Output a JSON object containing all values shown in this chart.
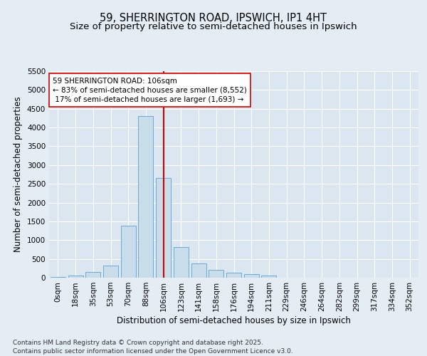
{
  "title_line1": "59, SHERRINGTON ROAD, IPSWICH, IP1 4HT",
  "title_line2": "Size of property relative to semi-detached houses in Ipswich",
  "xlabel": "Distribution of semi-detached houses by size in Ipswich",
  "ylabel": "Number of semi-detached properties",
  "categories": [
    "0sqm",
    "18sqm",
    "35sqm",
    "53sqm",
    "70sqm",
    "88sqm",
    "106sqm",
    "123sqm",
    "141sqm",
    "158sqm",
    "176sqm",
    "194sqm",
    "211sqm",
    "229sqm",
    "246sqm",
    "264sqm",
    "282sqm",
    "299sqm",
    "317sqm",
    "334sqm",
    "352sqm"
  ],
  "bar_values": [
    10,
    55,
    160,
    320,
    1380,
    4300,
    2650,
    810,
    385,
    205,
    130,
    90,
    60,
    0,
    0,
    0,
    0,
    0,
    0,
    0,
    0
  ],
  "bar_color": "#c9dcea",
  "bar_edge_color": "#6aaad4",
  "vline_x": 6,
  "vline_color": "#cc0000",
  "annotation_text": "59 SHERRINGTON ROAD: 106sqm\n← 83% of semi-detached houses are smaller (8,552)\n 17% of semi-detached houses are larger (1,693) →",
  "annotation_box_facecolor": "#ffffff",
  "annotation_box_edgecolor": "#cc0000",
  "ylim": [
    0,
    5500
  ],
  "yticks": [
    0,
    500,
    1000,
    1500,
    2000,
    2500,
    3000,
    3500,
    4000,
    4500,
    5000,
    5500
  ],
  "bg_color": "#e4ecf4",
  "plot_bg_color": "#dce6f0",
  "grid_color": "#ffffff",
  "footer": "Contains HM Land Registry data © Crown copyright and database right 2025.\nContains public sector information licensed under the Open Government Licence v3.0.",
  "title_fontsize": 10.5,
  "subtitle_fontsize": 9.5,
  "ylabel_fontsize": 8.5,
  "xlabel_fontsize": 8.5,
  "tick_fontsize": 7.5,
  "annot_fontsize": 7.5,
  "footer_fontsize": 6.5
}
